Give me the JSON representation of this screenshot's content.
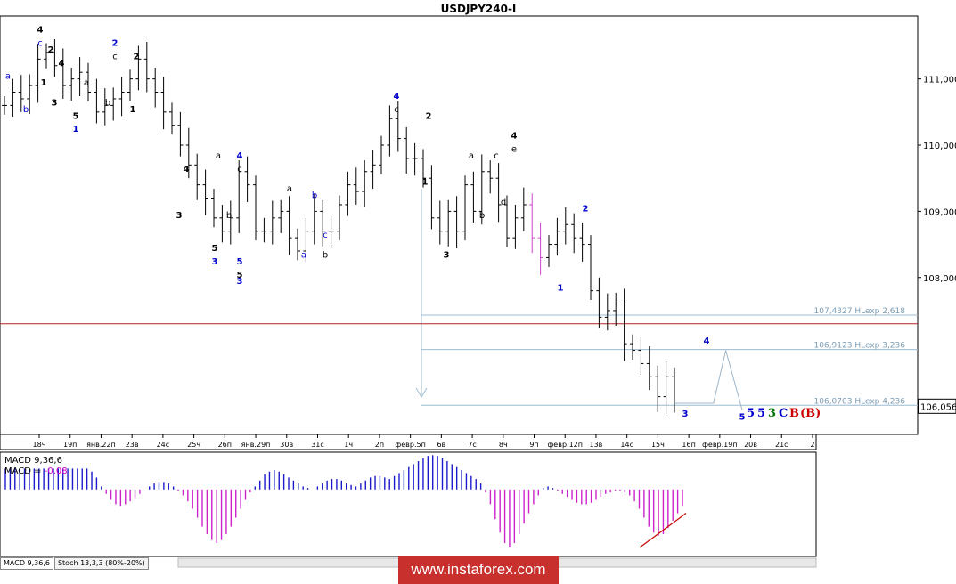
{
  "chart_data": {
    "type": "candlestick",
    "title": "USDJPY240-I",
    "ylim": [
      105.63,
      111.95
    ],
    "y_ticks": [
      "108,000",
      "109,000",
      "110,000",
      "111,000"
    ],
    "x_ticks": [
      "18ч",
      "19п",
      "янв.22п",
      "23в",
      "24с",
      "25ч",
      "26п",
      "янв.29п",
      "30в",
      "31с",
      "1ч",
      "2п",
      "февр.5п",
      "6в",
      "7с",
      "8ч",
      "9п",
      "февр.12п",
      "13в",
      "14с",
      "15ч",
      "16п",
      "февр.19п",
      "20в",
      "21с",
      "2"
    ],
    "price_levels": [
      {
        "price": 107.4327,
        "label": "107,4327 HLexp 2,618"
      },
      {
        "price": 106.9123,
        "label": "106,9123 HLexp 3,236"
      },
      {
        "price": 106.0703,
        "label": "106,0703 HLexp 4,236"
      }
    ],
    "horizontal_line": {
      "price": 107.3
    },
    "current_price": {
      "value": 106.056,
      "label": "106,056"
    },
    "close_series": [
      110.6,
      110.8,
      110.7,
      110.9,
      111.3,
      111.4,
      111.2,
      110.9,
      111.0,
      111.1,
      110.8,
      110.5,
      110.6,
      110.7,
      110.8,
      111.0,
      111.3,
      111.0,
      110.8,
      110.5,
      110.3,
      110.0,
      109.7,
      109.4,
      109.2,
      108.9,
      108.7,
      108.9,
      109.6,
      109.4,
      108.7,
      108.7,
      108.9,
      109.0,
      108.6,
      108.4,
      108.7,
      109.0,
      108.7,
      108.7,
      109.1,
      109.4,
      109.3,
      109.6,
      109.7,
      110.0,
      110.4,
      110.1,
      109.8,
      109.8,
      109.5,
      108.9,
      108.7,
      109.0,
      108.7,
      109.4,
      109.0,
      109.6,
      109.5,
      109.1,
      108.6,
      108.9,
      109.1,
      108.6,
      108.3,
      108.5,
      108.7,
      108.8,
      108.6,
      108.5,
      107.8,
      107.4,
      107.5,
      107.6,
      107.0,
      106.9,
      106.7,
      106.5,
      106.2,
      106.5,
      106.1
    ],
    "projection": {
      "x": [
        173,
        176,
        180
      ],
      "y": [
        106.1,
        106.9,
        106.0
      ]
    },
    "wave_labels": [
      {
        "text": "4",
        "x": 10,
        "y": 111.7,
        "color": "#000000"
      },
      {
        "text": "c",
        "x": 10,
        "y": 111.5,
        "color": "#0000cc"
      },
      {
        "text": "2",
        "x": 13,
        "y": 111.4,
        "color": "#000000"
      },
      {
        "text": "4",
        "x": 16,
        "y": 111.2,
        "color": "#000000"
      },
      {
        "text": "a",
        "x": 1,
        "y": 111.0,
        "color": "#0000cc"
      },
      {
        "text": "1",
        "x": 11,
        "y": 110.9,
        "color": "#000000"
      },
      {
        "text": "a",
        "x": 23,
        "y": 110.9,
        "color": "#000000"
      },
      {
        "text": "b",
        "x": 6,
        "y": 110.5,
        "color": "#0000cc"
      },
      {
        "text": "3",
        "x": 14,
        "y": 110.6,
        "color": "#000000"
      },
      {
        "text": "5",
        "x": 20,
        "y": 110.4,
        "color": "#000000"
      },
      {
        "text": "1",
        "x": 20,
        "y": 110.2,
        "color": "#0000cc"
      },
      {
        "text": "b",
        "x": 29,
        "y": 110.6,
        "color": "#000000"
      },
      {
        "text": "2",
        "x": 31,
        "y": 111.5,
        "color": "#0000cc"
      },
      {
        "text": "c",
        "x": 31,
        "y": 111.3,
        "color": "#000000"
      },
      {
        "text": "2",
        "x": 37,
        "y": 111.3,
        "color": "#000000"
      },
      {
        "text": "1",
        "x": 36,
        "y": 110.5,
        "color": "#000000"
      },
      {
        "text": "4",
        "x": 51,
        "y": 109.6,
        "color": "#000000"
      },
      {
        "text": "3",
        "x": 49,
        "y": 108.9,
        "color": "#000000"
      },
      {
        "text": "a",
        "x": 60,
        "y": 109.8,
        "color": "#000000"
      },
      {
        "text": "4",
        "x": 66,
        "y": 109.8,
        "color": "#0000cc"
      },
      {
        "text": "c",
        "x": 66,
        "y": 109.6,
        "color": "#000000"
      },
      {
        "text": "b",
        "x": 63,
        "y": 108.9,
        "color": "#000000"
      },
      {
        "text": "5",
        "x": 59,
        "y": 108.4,
        "color": "#000000"
      },
      {
        "text": "3",
        "x": 59,
        "y": 108.2,
        "color": "#0000cc"
      },
      {
        "text": "5",
        "x": 66,
        "y": 108.2,
        "color": "#0000cc"
      },
      {
        "text": "5",
        "x": 66,
        "y": 108.0,
        "color": "#000000"
      },
      {
        "text": "3",
        "x": 66,
        "y": 107.9,
        "color": "#0000cc"
      },
      {
        "text": "a",
        "x": 80,
        "y": 109.3,
        "color": "#000000"
      },
      {
        "text": "b",
        "x": 87,
        "y": 109.2,
        "color": "#0000cc"
      },
      {
        "text": "c",
        "x": 90,
        "y": 108.6,
        "color": "#0000cc"
      },
      {
        "text": "a",
        "x": 84,
        "y": 108.3,
        "color": "#0000cc"
      },
      {
        "text": "b",
        "x": 90,
        "y": 108.3,
        "color": "#000000"
      },
      {
        "text": "4",
        "x": 110,
        "y": 110.7,
        "color": "#0000cc"
      },
      {
        "text": "c",
        "x": 110,
        "y": 110.5,
        "color": "#000000"
      },
      {
        "text": "2",
        "x": 119,
        "y": 110.4,
        "color": "#000000"
      },
      {
        "text": "1",
        "x": 118,
        "y": 109.4,
        "color": "#000000"
      },
      {
        "text": "3",
        "x": 124,
        "y": 108.3,
        "color": "#000000"
      },
      {
        "text": "a",
        "x": 131,
        "y": 109.8,
        "color": "#000000"
      },
      {
        "text": "b",
        "x": 134,
        "y": 108.9,
        "color": "#000000"
      },
      {
        "text": "c",
        "x": 138,
        "y": 109.8,
        "color": "#000000"
      },
      {
        "text": "d",
        "x": 140,
        "y": 109.1,
        "color": "#000000"
      },
      {
        "text": "4",
        "x": 143,
        "y": 110.1,
        "color": "#000000"
      },
      {
        "text": "e",
        "x": 143,
        "y": 109.9,
        "color": "#000000"
      },
      {
        "text": "2",
        "x": 163,
        "y": 109.0,
        "color": "#0000cc"
      },
      {
        "text": "1",
        "x": 156,
        "y": 107.8,
        "color": "#0000cc"
      },
      {
        "text": "3",
        "x": 191,
        "y": 105.9,
        "color": "#0000cc"
      },
      {
        "text": "4",
        "x": 197,
        "y": 107.0,
        "color": "#0000cc"
      },
      {
        "text": "5",
        "x": 207,
        "y": 105.85,
        "color": "#0000cc"
      }
    ],
    "degree_labels": [
      {
        "text": "5",
        "color": "#0000cc"
      },
      {
        "text": "5",
        "color": "#0000cc"
      },
      {
        "text": "3",
        "color": "#007700"
      },
      {
        "text": "C",
        "color": "#0000cc"
      },
      {
        "text": "B",
        "color": "#cc0000"
      },
      {
        "text": "(B)",
        "color": "#cc0000"
      }
    ]
  },
  "indicator": {
    "name": "MACD 9,36,6",
    "value_label": "MACD = ",
    "value": "-0,08",
    "ylim": [
      -0.9,
      0.5
    ],
    "histogram": [
      0.28,
      0.28,
      0.28,
      0.28,
      0.28,
      0.28,
      0.28,
      0.28,
      0.28,
      0.28,
      0.28,
      0.28,
      0.28,
      0.28,
      0.28,
      0.28,
      0.28,
      0.28,
      0.24,
      0.16,
      0.04,
      -0.06,
      -0.14,
      -0.2,
      -0.22,
      -0.2,
      -0.16,
      -0.12,
      -0.06,
      0.0,
      0.04,
      0.08,
      0.1,
      0.1,
      0.08,
      0.04,
      -0.02,
      -0.08,
      -0.16,
      -0.26,
      -0.38,
      -0.5,
      -0.6,
      -0.68,
      -0.72,
      -0.68,
      -0.6,
      -0.5,
      -0.38,
      -0.26,
      -0.14,
      -0.04,
      0.04,
      0.12,
      0.2,
      0.24,
      0.26,
      0.24,
      0.2,
      0.16,
      0.12,
      0.08,
      0.04,
      0.02,
      0.0,
      0.04,
      0.08,
      0.12,
      0.14,
      0.14,
      0.12,
      0.08,
      0.06,
      0.04,
      0.08,
      0.12,
      0.16,
      0.18,
      0.18,
      0.16,
      0.14,
      0.18,
      0.22,
      0.26,
      0.3,
      0.34,
      0.38,
      0.42,
      0.45,
      0.46,
      0.45,
      0.42,
      0.38,
      0.34,
      0.3,
      0.26,
      0.22,
      0.18,
      0.14,
      0.08,
      -0.04,
      -0.2,
      -0.4,
      -0.58,
      -0.72,
      -0.78,
      -0.72,
      -0.6,
      -0.46,
      -0.32,
      -0.2,
      -0.08,
      0.02,
      0.04,
      0.02,
      -0.02,
      -0.06,
      -0.1,
      -0.14,
      -0.18,
      -0.2,
      -0.2,
      -0.18,
      -0.14,
      -0.1,
      -0.06,
      -0.04,
      -0.02,
      -0.02,
      -0.04,
      -0.08,
      -0.16,
      -0.26,
      -0.38,
      -0.5,
      -0.58,
      -0.62,
      -0.6,
      -0.52,
      -0.42,
      -0.32,
      -0.22
    ]
  },
  "tabs": [
    "MACD 9,36,6",
    "Stoch 13,3,3 (80%-20%)"
  ],
  "banner": {
    "text": "www.instaforex.com"
  }
}
